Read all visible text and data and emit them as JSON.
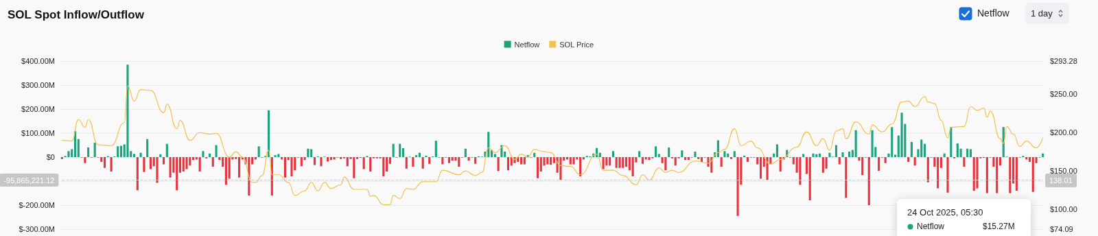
{
  "chart_data": {
    "type": "bar",
    "title": "SOL Spot Inflow/Outflow",
    "legend": "top",
    "grid": "y",
    "marker": "none",
    "tick_labels": "y",
    "annotations": [
      "Netflow",
      "1 day",
      "24 Oct 2025, 05:30",
      "Netflow",
      "$15.27M",
      "138.01"
    ],
    "ylim": [
      -300,
      400
    ],
    "yticks": [
      {
        "value": -300,
        "label": "$-300.00M"
      },
      {
        "value": -200,
        "label": "$-200.00M"
      },
      {
        "value": -100,
        "label": null
      },
      {
        "value": 0,
        "label": "$0"
      },
      {
        "value": 100,
        "label": "$100.00M"
      },
      {
        "value": 200,
        "label": "$200.00M"
      },
      {
        "value": 300,
        "label": "$300.00M"
      },
      {
        "value": 400,
        "label": "$400.00M"
      }
    ],
    "y2lim": [
      74.09,
      293.28
    ],
    "y2ticks": [
      {
        "value": 74.09,
        "label": "$74.09"
      },
      {
        "value": 100,
        "label": "$100.00"
      },
      {
        "value": 150,
        "label": "$150.00"
      },
      {
        "value": 200,
        "label": "$200.00"
      },
      {
        "value": 250,
        "label": "$250.00"
      },
      {
        "value": 293.28,
        "label": "$293.28"
      }
    ],
    "ref_lines": [
      {
        "axis": "y",
        "value": -95.86522112,
        "label": "-95,865,221.12",
        "color": "#c8c8c8",
        "line_style": "dashed"
      }
    ],
    "categories": [
      null,
      null,
      null,
      null,
      null,
      null,
      null,
      null,
      null,
      null,
      null,
      null,
      null,
      null,
      null,
      null,
      null,
      null,
      null,
      null,
      null,
      null,
      null,
      null,
      null,
      null,
      null,
      null,
      null,
      null,
      null,
      null,
      null,
      null,
      null,
      null,
      null,
      null,
      null,
      null,
      null,
      null,
      null,
      null,
      null,
      null,
      null,
      null,
      null,
      null,
      null,
      null,
      null,
      null,
      null,
      null,
      null,
      null,
      null,
      null,
      null,
      null,
      null,
      null,
      null,
      null,
      null,
      null,
      null,
      null,
      null,
      null,
      null,
      null,
      null,
      null,
      null,
      null,
      null,
      null,
      null,
      null,
      null,
      null,
      null,
      null,
      null,
      null,
      null,
      null,
      null,
      null,
      null,
      null,
      null,
      null,
      null,
      null,
      null,
      null,
      null,
      null,
      null,
      null,
      null,
      null,
      null,
      null,
      null,
      null,
      null,
      null,
      null,
      null,
      null,
      null,
      null,
      null,
      null,
      null,
      null,
      null,
      null,
      null,
      null,
      null,
      null,
      null,
      null,
      null,
      null,
      null,
      null,
      null,
      null,
      null,
      null,
      null,
      null,
      null,
      null,
      null,
      null,
      null,
      null,
      null,
      null,
      null,
      null,
      null,
      null,
      null,
      null,
      null,
      null,
      null,
      null,
      null,
      null,
      null,
      null,
      null,
      null,
      null,
      null,
      null,
      null,
      null,
      null,
      null,
      null,
      null,
      null,
      null,
      null,
      null,
      null,
      null,
      null,
      null,
      null,
      null,
      null,
      null,
      null,
      null,
      null,
      null,
      null,
      null,
      null,
      null,
      null,
      null,
      null,
      null,
      null,
      null,
      null,
      null,
      null,
      null,
      null,
      null,
      null,
      null,
      null,
      null,
      null,
      null,
      null,
      null,
      null,
      null,
      null,
      null,
      null,
      null,
      null,
      null,
      null,
      null,
      null,
      null,
      null,
      null,
      null,
      null,
      null,
      null,
      null,
      null,
      null,
      null,
      null,
      null,
      null,
      null,
      null,
      null,
      null,
      null,
      null,
      null,
      null,
      null,
      null,
      null,
      null,
      null,
      null,
      null,
      null,
      null,
      null,
      null,
      null,
      null,
      null,
      null,
      null,
      null,
      null,
      null,
      null,
      null,
      null,
      null,
      null,
      null,
      null,
      null,
      null,
      null,
      null,
      null,
      null,
      null,
      null,
      null,
      null,
      null,
      null,
      null,
      null,
      null,
      null,
      null,
      null,
      null,
      null,
      null,
      null,
      null,
      null,
      null,
      null,
      null,
      null,
      null
    ],
    "series": [
      {
        "name": "Netflow",
        "color": "#1aa37e",
        "values": [
          -8,
          5,
          25,
          33,
          108,
          75,
          -2,
          -25,
          40,
          -2,
          60,
          -2,
          -20,
          -45,
          4,
          -60,
          3,
          45,
          47,
          53,
          385,
          25,
          13,
          -138,
          18,
          -62,
          75,
          -50,
          -38,
          -107,
          12,
          -30,
          55,
          -85,
          -65,
          -138,
          -65,
          -60,
          -50,
          -35,
          -12,
          -10,
          -60,
          25,
          -5,
          15,
          -40,
          50,
          -12,
          -40,
          -115,
          -90,
          -10,
          -8,
          -85,
          -10,
          -30,
          -160,
          -30,
          -10,
          45,
          -2,
          5,
          195,
          -160,
          8,
          13,
          -10,
          -85,
          -12,
          -80,
          -55,
          -2,
          -38,
          -12,
          35,
          33,
          -33,
          3,
          -38,
          2,
          -18,
          -12,
          -10,
          -2,
          -8,
          -5,
          -38,
          -8,
          -88,
          -8,
          -3,
          -50,
          5,
          -60,
          -5,
          -5,
          -5,
          -80,
          -60,
          -28,
          55,
          -2,
          55,
          37,
          -48,
          2,
          -40,
          8,
          18,
          -48,
          6,
          -28,
          3,
          68,
          -2,
          -30,
          -2,
          -25,
          -15,
          -15,
          -40,
          -2,
          35,
          -15,
          -2,
          -28,
          3,
          2,
          23,
          105,
          30,
          13,
          -58,
          50,
          23,
          -55,
          -35,
          -25,
          -20,
          -30,
          -30,
          8,
          -2,
          18,
          -88,
          -60,
          -35,
          -30,
          -32,
          -25,
          -65,
          -95,
          -15,
          -10,
          -30,
          -30,
          -10,
          -80,
          -10,
          5,
          3,
          15,
          38,
          18,
          -50,
          -35,
          -35,
          25,
          -45,
          -45,
          -45,
          -40,
          -55,
          -80,
          -22,
          25,
          -28,
          -10,
          -12,
          -5,
          45,
          13,
          -25,
          -55,
          40,
          -5,
          -35,
          -5,
          28,
          -12,
          -12,
          -2,
          23,
          -8,
          -20,
          -2,
          -40,
          -65,
          20,
          70,
          -40,
          25,
          15,
          -8,
          25,
          -245,
          -115,
          6,
          -20,
          -2,
          -2,
          -30,
          -90,
          -40,
          -95,
          -30,
          15,
          53,
          -60,
          -10,
          30,
          -2,
          -30,
          -65,
          -115,
          13,
          -70,
          -180,
          15,
          12,
          15,
          -65,
          -48,
          18,
          2,
          50,
          -30,
          20,
          -170,
          23,
          30,
          112,
          -15,
          -75,
          -2,
          -200,
          112,
          42,
          -57,
          -2,
          -25,
          15,
          125,
          10,
          90,
          185,
          138,
          -20,
          63,
          -35,
          33,
          73,
          55,
          -105,
          -2,
          -40,
          -130,
          -45,
          15,
          -148,
          125,
          -5,
          57,
          35,
          -40,
          35,
          33,
          -140,
          -130,
          -5,
          -3,
          -150,
          -2,
          -40,
          -150,
          -35,
          125,
          2,
          -150,
          -110,
          -140,
          -2,
          5,
          -10,
          -20,
          -145,
          -25,
          -2,
          15
        ],
        "colors": [
          "#e8333f",
          "#1aa37e",
          "#1aa37e",
          "#1aa37e",
          "#1aa37e",
          "#1aa37e",
          "#e8333f",
          "#e8333f",
          "#1aa37e",
          "#e8333f",
          "#1aa37e",
          "#e8333f",
          "#e8333f",
          "#e8333f",
          "#1aa37e",
          "#e8333f",
          "#1aa37e",
          "#1aa37e",
          "#1aa37e",
          "#1aa37e",
          "#1aa37e",
          "#1aa37e",
          "#1aa37e",
          "#e8333f",
          "#1aa37e",
          "#e8333f",
          "#1aa37e",
          "#e8333f",
          "#e8333f",
          "#e8333f",
          "#1aa37e",
          "#e8333f",
          "#1aa37e",
          "#e8333f",
          "#e8333f",
          "#e8333f",
          "#e8333f",
          "#e8333f",
          "#e8333f",
          "#e8333f",
          "#e8333f",
          "#e8333f",
          "#e8333f",
          "#1aa37e",
          "#e8333f",
          "#1aa37e",
          "#e8333f",
          "#1aa37e",
          "#e8333f",
          "#e8333f",
          "#e8333f",
          "#e8333f",
          "#e8333f",
          "#e8333f",
          "#e8333f",
          "#e8333f",
          "#e8333f",
          "#e8333f",
          "#e8333f",
          "#e8333f",
          "#1aa37e",
          "#e8333f",
          "#1aa37e",
          "#1aa37e",
          "#e8333f",
          "#1aa37e",
          "#1aa37e",
          "#e8333f",
          "#e8333f",
          "#e8333f",
          "#e8333f",
          "#e8333f",
          "#e8333f",
          "#e8333f",
          "#e8333f",
          "#1aa37e",
          "#1aa37e",
          "#e8333f",
          "#1aa37e",
          "#e8333f",
          "#1aa37e",
          "#e8333f",
          "#e8333f",
          "#e8333f",
          "#e8333f",
          "#e8333f",
          "#e8333f",
          "#e8333f",
          "#e8333f",
          "#e8333f",
          "#e8333f",
          "#e8333f",
          "#e8333f",
          "#1aa37e",
          "#e8333f",
          "#e8333f",
          "#e8333f",
          "#e8333f",
          "#e8333f",
          "#e8333f",
          "#e8333f",
          "#1aa37e",
          "#e8333f",
          "#1aa37e",
          "#1aa37e",
          "#e8333f",
          "#1aa37e",
          "#e8333f",
          "#1aa37e",
          "#1aa37e",
          "#e8333f",
          "#1aa37e",
          "#e8333f",
          "#1aa37e",
          "#1aa37e",
          "#e8333f",
          "#e8333f",
          "#e8333f",
          "#e8333f",
          "#e8333f",
          "#e8333f",
          "#e8333f",
          "#e8333f",
          "#1aa37e",
          "#e8333f",
          "#e8333f",
          "#e8333f",
          "#1aa37e",
          "#1aa37e",
          "#1aa37e",
          "#1aa37e",
          "#1aa37e",
          "#1aa37e",
          "#e8333f",
          "#1aa37e",
          "#1aa37e",
          "#e8333f",
          "#e8333f",
          "#e8333f",
          "#e8333f",
          "#e8333f",
          "#e8333f",
          "#1aa37e",
          "#e8333f",
          "#1aa37e",
          "#e8333f",
          "#e8333f",
          "#e8333f",
          "#e8333f",
          "#e8333f",
          "#e8333f",
          "#e8333f",
          "#e8333f",
          "#e8333f",
          "#e8333f",
          "#e8333f",
          "#e8333f",
          "#e8333f",
          "#e8333f",
          "#e8333f",
          "#1aa37e",
          "#1aa37e",
          "#1aa37e",
          "#1aa37e",
          "#1aa37e",
          "#e8333f",
          "#e8333f",
          "#e8333f",
          "#1aa37e",
          "#e8333f",
          "#e8333f",
          "#e8333f",
          "#e8333f",
          "#e8333f",
          "#e8333f",
          "#e8333f",
          "#1aa37e",
          "#e8333f",
          "#e8333f",
          "#e8333f",
          "#e8333f",
          "#1aa37e",
          "#1aa37e",
          "#e8333f",
          "#e8333f",
          "#1aa37e",
          "#e8333f",
          "#e8333f",
          "#e8333f",
          "#1aa37e",
          "#e8333f",
          "#e8333f",
          "#e8333f",
          "#1aa37e",
          "#e8333f",
          "#e8333f",
          "#e8333f",
          "#e8333f",
          "#e8333f",
          "#1aa37e",
          "#1aa37e",
          "#e8333f",
          "#1aa37e",
          "#1aa37e",
          "#e8333f",
          "#1aa37e",
          "#e8333f",
          "#e8333f",
          "#1aa37e",
          "#e8333f",
          "#e8333f",
          "#e8333f",
          "#e8333f",
          "#e8333f",
          "#e8333f",
          "#e8333f",
          "#e8333f",
          "#1aa37e",
          "#1aa37e",
          "#e8333f",
          "#e8333f",
          "#1aa37e",
          "#e8333f",
          "#e8333f",
          "#e8333f",
          "#e8333f",
          "#1aa37e",
          "#e8333f",
          "#e8333f",
          "#1aa37e",
          "#1aa37e",
          "#1aa37e",
          "#e8333f",
          "#e8333f",
          "#1aa37e",
          "#1aa37e",
          "#1aa37e",
          "#e8333f",
          "#1aa37e",
          "#e8333f",
          "#1aa37e",
          "#1aa37e",
          "#1aa37e",
          "#e8333f",
          "#e8333f",
          "#e8333f",
          "#e8333f",
          "#1aa37e",
          "#1aa37e",
          "#e8333f",
          "#e8333f",
          "#e8333f",
          "#1aa37e",
          "#1aa37e",
          "#1aa37e",
          "#1aa37e",
          "#1aa37e",
          "#1aa37e",
          "#e8333f",
          "#1aa37e",
          "#e8333f",
          "#1aa37e",
          "#1aa37e",
          "#1aa37e",
          "#e8333f",
          "#e8333f",
          "#e8333f",
          "#e8333f",
          "#e8333f",
          "#1aa37e",
          "#e8333f",
          "#1aa37e",
          "#e8333f",
          "#1aa37e",
          "#1aa37e",
          "#e8333f",
          "#1aa37e",
          "#1aa37e",
          "#e8333f",
          "#e8333f",
          "#e8333f",
          "#e8333f",
          "#e8333f",
          "#e8333f",
          "#e8333f",
          "#e8333f",
          "#e8333f",
          "#1aa37e",
          "#1aa37e",
          "#e8333f",
          "#e8333f",
          "#e8333f",
          "#e8333f",
          "#1aa37e",
          "#e8333f",
          "#e8333f",
          "#e8333f",
          "#e8333f",
          "#e8333f",
          "#1aa37e"
        ]
      },
      {
        "name": "SOL Price",
        "type": "line",
        "axis": "y2",
        "color": "#f2c14e",
        "values": [
          190,
          null,
          null,
          189,
          null,
          217,
          null,
          207,
          217,
          null,
          null,
          184,
          null,
          null,
          null,
          183,
          null,
          null,
          null,
          213,
          261,
          null,
          241,
          null,
          256,
          null,
          null,
          255,
          null,
          null,
          null,
          226,
          237,
          null,
          null,
          205,
          216,
          null,
          null,
          190,
          null,
          null,
          200,
          null,
          null,
          198,
          null,
          199,
          null,
          null,
          null,
          168,
          null,
          175,
          null,
          168,
          null,
          null,
          135,
          135,
          null,
          144,
          null,
          177,
          145,
          null,
          145,
          null,
          null,
          135,
          null,
          118,
          null,
          null,
          124,
          null,
          135,
          null,
          124,
          null,
          135,
          null,
          127,
          null,
          null,
          132,
          142,
          null,
          null,
          126,
          null,
          null,
          null,
          126,
          117,
          118,
          null,
          null,
          106,
          null,
          106,
          118,
          null,
          114,
          null,
          127,
          null,
          126,
          null,
          null,
          136,
          null,
          null,
          null,
          136,
          null,
          151,
          null,
          null,
          null,
          null,
          145,
          null,
          150,
          null,
          null,
          144,
          null,
          148,
          null,
          180,
          null,
          174,
          null,
          null,
          183,
          null,
          null,
          165,
          null,
          172,
          null,
          168,
          null,
          178,
          null,
          null,
          175,
          null,
          174,
          null,
          null,
          157,
          null,
          null,
          156,
          null,
          null,
          145,
          null,
          null,
          null,
          null,
          172,
          null,
          151,
          null,
          null,
          151,
          null,
          null,
          144,
          null,
          null,
          null,
          132,
          null,
          145,
          null,
          138,
          null,
          null,
          154,
          null,
          148,
          null,
          151,
          null,
          148,
          null,
          null,
          null,
          null,
          163,
          null,
          null,
          null,
          160,
          null,
          null,
          174,
          null,
          178,
          null,
          null,
          205,
          null,
          183,
          null,
          null,
          189,
          null,
          180,
          null,
          null,
          null,
          159,
          null,
          null,
          165,
          null,
          null,
          null,
          null,
          181,
          null,
          null,
          201,
          null,
          null,
          183,
          null,
          192,
          null,
          177,
          null,
          202,
          null,
          205,
          192,
          null,
          null,
          214,
          null,
          null,
          null,
          198,
          210,
          null,
          null,
          201,
          null,
          null,
          211,
          null,
          null,
          240,
          null,
          241,
          null,
          234,
          null,
          null,
          247,
          240,
          null,
          238,
          null,
          216,
          null,
          193,
          207,
          null,
          null,
          null,
          208,
          null,
          234,
          null,
          229,
          null,
          232,
          220,
          228,
          null,
          null,
          192,
          186,
          208,
          null,
          198,
          null,
          182,
          null,
          189,
          null,
          null,
          180,
          null,
          193
        ]
      }
    ]
  }
}
